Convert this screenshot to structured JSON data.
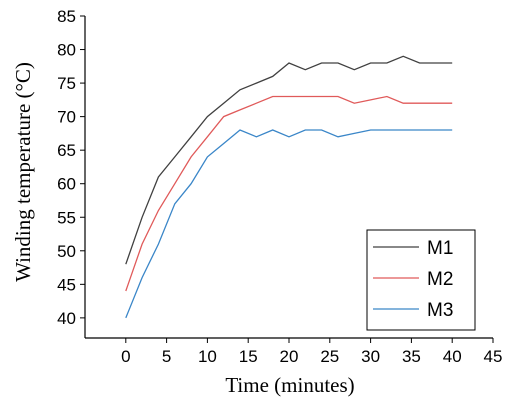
{
  "chart_data": {
    "type": "line",
    "xlabel": "Time (minutes)",
    "ylabel": "Winding temperature (°C)",
    "xlim": [
      -5,
      45
    ],
    "ylim": [
      37,
      85
    ],
    "xticks": [
      0,
      5,
      10,
      15,
      20,
      25,
      30,
      35,
      40,
      45
    ],
    "yticks": [
      40,
      45,
      50,
      55,
      60,
      65,
      70,
      75,
      80,
      85
    ],
    "grid": false,
    "legend_position": "bottom-right",
    "x": [
      0,
      2,
      4,
      6,
      8,
      10,
      12,
      14,
      16,
      18,
      20,
      22,
      24,
      26,
      28,
      30,
      32,
      34,
      36,
      38,
      40
    ],
    "series": [
      {
        "name": "M1",
        "color": "#404040",
        "values": [
          48,
          55,
          61,
          64,
          67,
          70,
          72,
          74,
          75,
          76,
          78,
          77,
          78,
          78,
          77,
          78,
          78,
          79,
          78,
          78,
          78
        ]
      },
      {
        "name": "M2",
        "color": "#e05a5a",
        "values": [
          44,
          51,
          56,
          60,
          64,
          67,
          70,
          71,
          72,
          73,
          73,
          73,
          73,
          73,
          72,
          72.5,
          73,
          72,
          72,
          72,
          72
        ]
      },
      {
        "name": "M3",
        "color": "#3a86c8",
        "values": [
          40,
          46,
          51,
          57,
          60,
          64,
          66,
          68,
          67,
          68,
          67,
          68,
          68,
          67,
          67.5,
          68,
          68,
          68,
          68,
          68,
          68
        ]
      }
    ]
  }
}
